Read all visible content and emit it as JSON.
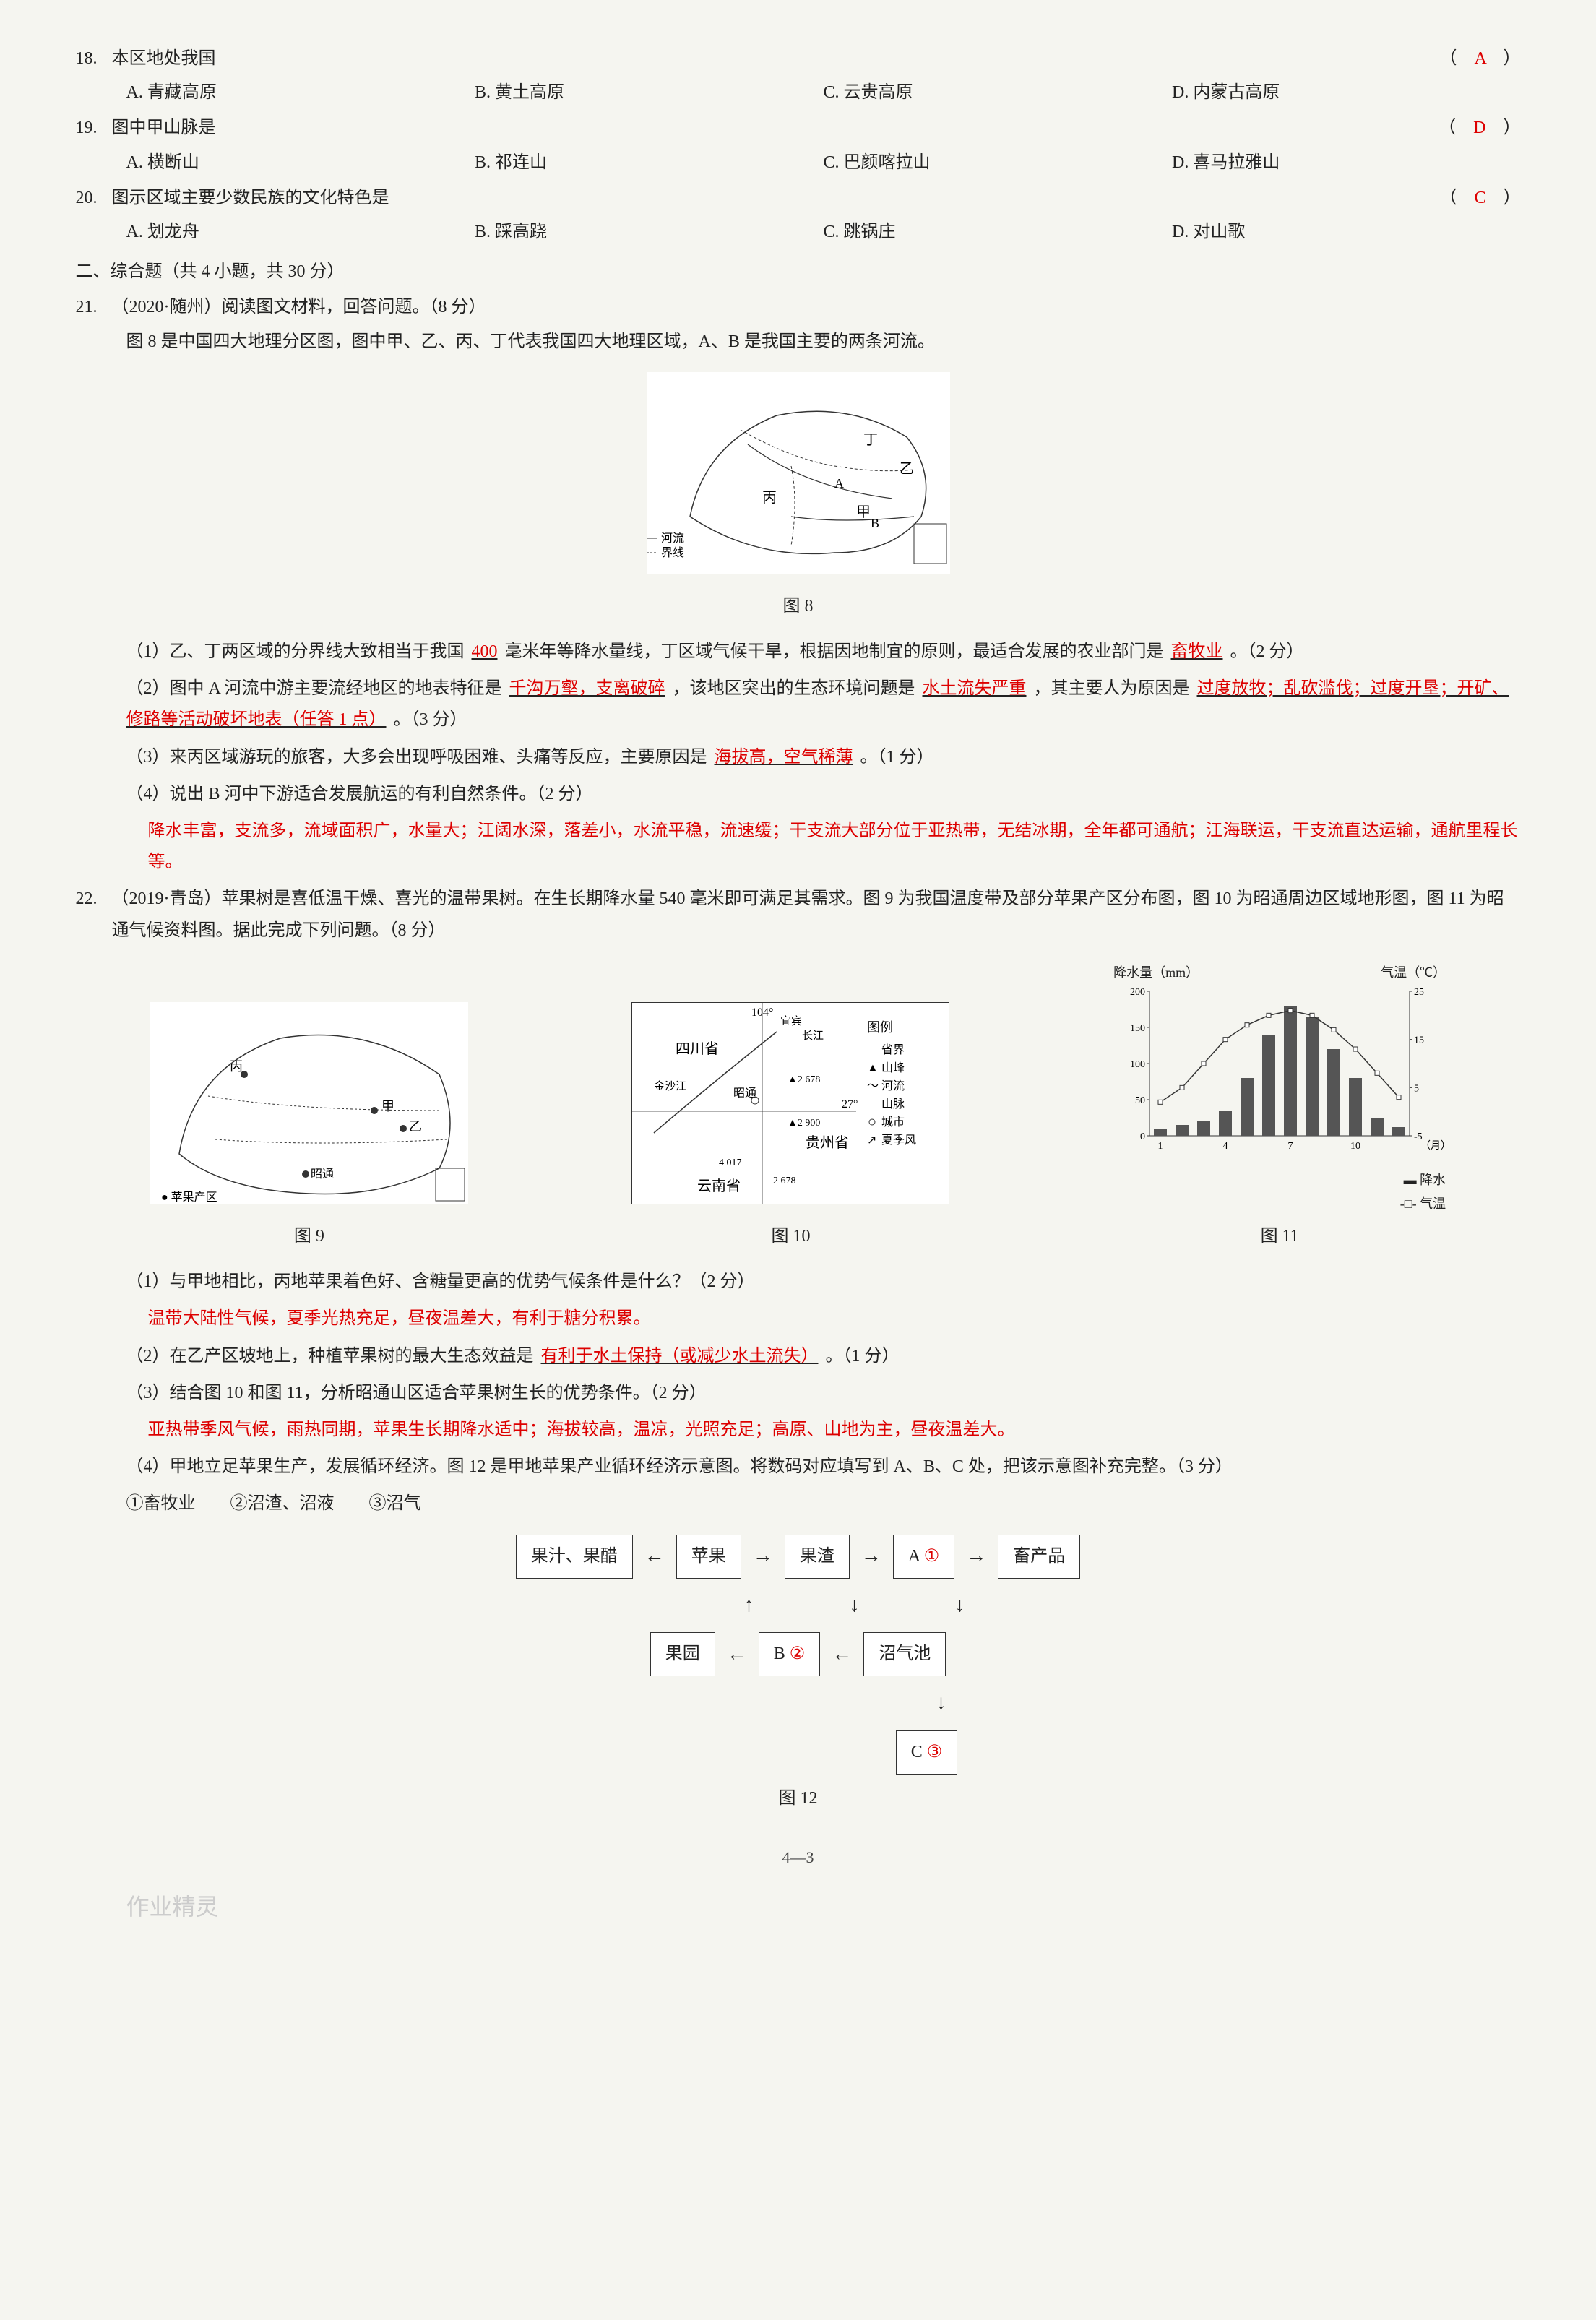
{
  "q18": {
    "num": "18.",
    "text": "本区地处我国",
    "answer": "A",
    "options": {
      "a": "A. 青藏高原",
      "b": "B. 黄土高原",
      "c": "C. 云贵高原",
      "d": "D. 内蒙古高原"
    }
  },
  "q19": {
    "num": "19.",
    "text": "图中甲山脉是",
    "answer": "D",
    "options": {
      "a": "A. 横断山",
      "b": "B. 祁连山",
      "c": "C. 巴颜喀拉山",
      "d": "D. 喜马拉雅山"
    }
  },
  "q20": {
    "num": "20.",
    "text": "图示区域主要少数民族的文化特色是",
    "answer": "C",
    "options": {
      "a": "A. 划龙舟",
      "b": "B. 踩高跷",
      "c": "C. 跳锅庄",
      "d": "D. 对山歌"
    }
  },
  "section2": "二、综合题（共 4 小题，共 30 分）",
  "q21": {
    "num": "21.",
    "text": "（2020·随州）阅读图文材料，回答问题。（8 分）",
    "instruction": "图 8 是中国四大地理分区图，图中甲、乙、丙、丁代表我国四大地理区域，A、B 是我国主要的两条河流。",
    "fig8_placeholder": "中国四大地理分区图",
    "fig8_caption": "图 8",
    "legend_river": "河流",
    "legend_boundary": "界线",
    "sub1_a": "（1）乙、丁两区域的分界线大致相当于我国",
    "sub1_blank1": "400",
    "sub1_b": "毫米年等降水量线，丁区域气候干旱，根据因地制宜的原则，最适合发展的农业部门是",
    "sub1_blank2": "畜牧业",
    "sub1_c": "。（2 分）",
    "sub2_a": "（2）图中 A 河流中游主要流经地区的地表特征是",
    "sub2_blank1": "千沟万壑，支离破碎",
    "sub2_b": "，该地区突出的生态环境问题是",
    "sub2_blank2": "水土流失严重",
    "sub2_c": "，其主要人为原因是",
    "sub2_blank3": "过度放牧；乱砍滥伐；过度开垦；开矿、修路等活动破坏地表（任答 1 点）",
    "sub2_d": "。（3 分）",
    "sub3_a": "（3）来丙区域游玩的旅客，大多会出现呼吸困难、头痛等反应，主要原因是",
    "sub3_blank1": "海拔高，空气稀薄",
    "sub3_b": "。（1 分）",
    "sub4_a": "（4）说出 B 河中下游适合发展航运的有利自然条件。（2 分）",
    "sub4_answer": "降水丰富，支流多，流域面积广，水量大；江阔水深，落差小，水流平稳，流速缓；干支流大部分位于亚热带，无结冰期，全年都可通航；江海联运，干支流直达运输，通航里程长等。"
  },
  "q22": {
    "num": "22.",
    "text": "（2019·青岛）苹果树是喜低温干燥、喜光的温带果树。在生长期降水量 540 毫米即可满足其需求。图 9 为我国温度带及部分苹果产区分布图，图 10 为昭通周边区域地形图，图 11 为昭通气候资料图。据此完成下列问题。（8 分）",
    "fig9_placeholder": "我国温度带及苹果产区分布图",
    "fig10_placeholder": "昭通周边区域地形图",
    "fig11_placeholder": "昭通气候资料图",
    "fig9_caption": "图 9",
    "fig10_caption": "图 10",
    "fig11_caption": "图 11",
    "fig10_labels": {
      "sichuan": "四川省",
      "zhaotong": "昭通",
      "guizhou": "贵州省",
      "yunnan": "云南省",
      "jinsha": "金沙江",
      "changjiang": "长江",
      "yichang": "宜宾",
      "peak1": "▲2 678 山峰",
      "peak2": "▲2 900",
      "peak3": "4 017",
      "peak4": "2 678",
      "lon": "104°",
      "lat": "27°",
      "legend_title": "图例",
      "legend_border": "省界",
      "legend_peak": "山峰",
      "legend_river": "河流",
      "legend_range": "山脉",
      "legend_city": "城市",
      "legend_monsoon": "夏季风"
    },
    "fig11_chart": {
      "precip_label": "降水量（mm）",
      "temp_label": "气温（℃）",
      "legend_precip": "降水",
      "legend_temp": "气温",
      "x_label": "（月）",
      "precip_ticks": [
        0,
        50,
        100,
        150,
        200
      ],
      "temp_ticks": [
        -5,
        5,
        15,
        25
      ],
      "months": [
        1,
        4,
        7,
        10
      ],
      "precip_values": [
        10,
        15,
        20,
        35,
        80,
        140,
        180,
        165,
        120,
        80,
        25,
        12
      ],
      "temp_values": [
        2,
        5,
        10,
        15,
        18,
        20,
        21,
        20,
        17,
        13,
        8,
        3
      ],
      "bar_color": "#555555",
      "line_color": "#333333",
      "bg_color": "#ffffff"
    },
    "sub1_a": "（1）与甲地相比，丙地苹果着色好、含糖量更高的优势气候条件是什么？（2 分）",
    "sub1_answer": "温带大陆性气候，夏季光热充足，昼夜温差大，有利于糖分积累。",
    "sub2_a": "（2）在乙产区坡地上，种植苹果树的最大生态效益是",
    "sub2_blank": "有利于水土保持（或减少水土流失）",
    "sub2_b": "。（1 分）",
    "sub3_a": "（3）结合图 10 和图 11，分析昭通山区适合苹果树生长的优势条件。（2 分）",
    "sub3_answer": "亚热带季风气候，雨热同期，苹果生长期降水适中；海拔较高，温凉，光照充足；高原、山地为主，昼夜温差大。",
    "sub4_a": "（4）甲地立足苹果生产，发展循环经济。图 12 是甲地苹果产业循环经济示意图。将数码对应填写到 A、B、C 处，把该示意图补充完整。（3 分）",
    "sub4_options": "①畜牧业　　②沼渣、沼液　　③沼气",
    "flowchart": {
      "juice": "果汁、果醋",
      "apple": "苹果",
      "residue": "果渣",
      "boxA_label": "A",
      "boxA_fill": "①",
      "livestock_prod": "畜产品",
      "orchard": "果园",
      "boxB_label": "B",
      "boxB_fill": "②",
      "biogas_pool": "沼气池",
      "boxC_label": "C",
      "boxC_fill": "③"
    },
    "fig12_caption": "图 12"
  },
  "footer": "4—3",
  "watermark": "作业精灵"
}
